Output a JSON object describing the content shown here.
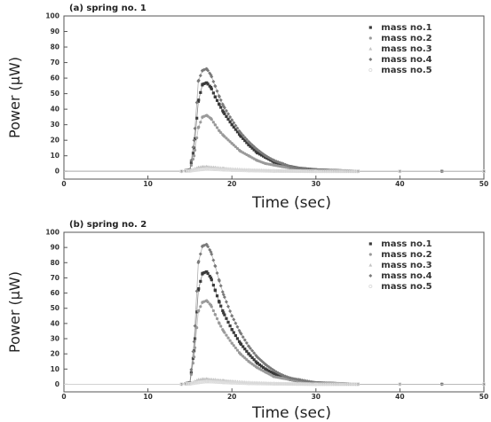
{
  "chart_data": [
    {
      "type": "scatter",
      "title": "(a) spring no. 1",
      "xlabel": "Time (sec)",
      "ylabel": "Power (μW)",
      "xlim": [
        0,
        50
      ],
      "ylim": [
        -5,
        100
      ],
      "xticks": [
        "0",
        "10",
        "20",
        "30",
        "40",
        "50"
      ],
      "yticks": [
        "0",
        "10",
        "20",
        "30",
        "40",
        "50",
        "60",
        "70",
        "80",
        "90",
        "100"
      ],
      "legend_position": "top-right",
      "grid": false,
      "series": [
        {
          "name": "mass no.1",
          "color": "#3a3a3a",
          "x": [
            14,
            15,
            15.5,
            16,
            16.5,
            17,
            17.5,
            18,
            18.5,
            19,
            20,
            21,
            22,
            23,
            24,
            25,
            26,
            27,
            28,
            30,
            35,
            40,
            45,
            50
          ],
          "y": [
            0,
            1,
            15,
            45,
            56,
            57,
            54,
            48,
            43,
            38,
            30,
            23,
            17,
            12,
            9,
            6,
            4,
            3,
            2,
            1,
            0,
            0,
            0,
            0
          ]
        },
        {
          "name": "mass no.2",
          "color": "#9a9a9a",
          "x": [
            14,
            15,
            15.5,
            16,
            16.5,
            17,
            17.5,
            18,
            18.5,
            19,
            20,
            21,
            22,
            23,
            24,
            25,
            26,
            27,
            28,
            30,
            35,
            40,
            45,
            50
          ],
          "y": [
            0,
            1,
            10,
            28,
            35,
            36,
            34,
            30,
            26,
            23,
            18,
            13,
            10,
            7,
            5,
            4,
            3,
            2,
            1,
            1,
            0,
            0,
            0,
            0
          ]
        },
        {
          "name": "mass no.3",
          "color": "#c4c4c4",
          "x": [
            14,
            15,
            16,
            16.5,
            17,
            18,
            19,
            20,
            22,
            25,
            30,
            35,
            40,
            45,
            50
          ],
          "y": [
            0,
            0.5,
            2.5,
            3,
            3,
            2.5,
            2,
            1.5,
            1,
            0.5,
            0,
            0,
            0,
            0,
            0
          ]
        },
        {
          "name": "mass no.4",
          "color": "#7a7a7a",
          "x": [
            14,
            15,
            15.5,
            16,
            16.5,
            17,
            17.5,
            18,
            18.5,
            19,
            20,
            21,
            22,
            23,
            24,
            25,
            26,
            27,
            28,
            30,
            35,
            40,
            45,
            50
          ],
          "y": [
            0,
            1,
            20,
            58,
            65,
            66,
            62,
            55,
            48,
            42,
            33,
            25,
            19,
            14,
            10,
            7,
            5,
            3,
            2,
            1,
            0,
            0,
            0,
            0
          ]
        },
        {
          "name": "mass no.5",
          "color": "#dcdcdc",
          "x": [
            14,
            15,
            16,
            17,
            18,
            19,
            20,
            22,
            25,
            30,
            40,
            50
          ],
          "y": [
            0,
            0.3,
            1,
            1.5,
            1.3,
            1,
            0.8,
            0.5,
            0.2,
            0,
            0,
            0
          ]
        }
      ]
    },
    {
      "type": "scatter",
      "title": "(b) spring no. 2",
      "xlabel": "Time (sec)",
      "ylabel": "Power (μW)",
      "xlim": [
        0,
        50
      ],
      "ylim": [
        -5,
        100
      ],
      "xticks": [
        "0",
        "10",
        "20",
        "30",
        "40",
        "50"
      ],
      "yticks": [
        "0",
        "10",
        "20",
        "30",
        "40",
        "50",
        "60",
        "70",
        "80",
        "90",
        "100"
      ],
      "legend_position": "top-right",
      "grid": false,
      "series": [
        {
          "name": "mass no.1",
          "color": "#3a3a3a",
          "x": [
            14,
            15,
            15.5,
            16,
            16.5,
            17,
            17.5,
            18,
            18.5,
            19,
            20,
            21,
            22,
            23,
            24,
            25,
            26,
            27,
            28,
            30,
            35,
            40,
            45,
            50
          ],
          "y": [
            0,
            1,
            22,
            62,
            73,
            74,
            70,
            62,
            54,
            47,
            36,
            27,
            20,
            14,
            10,
            7,
            5,
            3,
            2,
            1,
            0,
            0,
            0,
            0
          ]
        },
        {
          "name": "mass no.2",
          "color": "#9a9a9a",
          "x": [
            14,
            15,
            15.5,
            16,
            16.5,
            17,
            17.5,
            18,
            18.5,
            19,
            20,
            21,
            22,
            23,
            24,
            25,
            26,
            27,
            28,
            30,
            35,
            40,
            45,
            50
          ],
          "y": [
            0,
            1,
            18,
            48,
            54,
            55,
            52,
            46,
            40,
            35,
            27,
            20,
            15,
            11,
            8,
            5,
            4,
            3,
            2,
            1,
            0,
            0,
            0,
            0
          ]
        },
        {
          "name": "mass no.3",
          "color": "#c4c4c4",
          "x": [
            14,
            15,
            16,
            16.5,
            17,
            18,
            19,
            20,
            22,
            25,
            30,
            35,
            40,
            45,
            50
          ],
          "y": [
            0,
            0.5,
            3,
            3.5,
            3.5,
            3,
            2.5,
            2,
            1.2,
            0.6,
            0,
            0,
            0,
            0,
            0
          ]
        },
        {
          "name": "mass no.4",
          "color": "#7a7a7a",
          "x": [
            14,
            15,
            15.5,
            16,
            16.5,
            17,
            17.5,
            18,
            18.5,
            19,
            20,
            21,
            22,
            23,
            24,
            25,
            26,
            27,
            28,
            30,
            35,
            40,
            45,
            50
          ],
          "y": [
            0,
            1,
            28,
            80,
            91,
            92,
            87,
            78,
            68,
            59,
            45,
            34,
            25,
            18,
            13,
            9,
            6,
            4,
            3,
            1,
            0,
            0,
            0,
            0
          ]
        },
        {
          "name": "mass no.5",
          "color": "#dcdcdc",
          "x": [
            14,
            15,
            16,
            17,
            18,
            19,
            20,
            22,
            25,
            30,
            40,
            50
          ],
          "y": [
            0,
            0.3,
            1.2,
            1.8,
            1.6,
            1.2,
            1,
            0.6,
            0.3,
            0,
            0,
            0
          ]
        }
      ]
    }
  ]
}
